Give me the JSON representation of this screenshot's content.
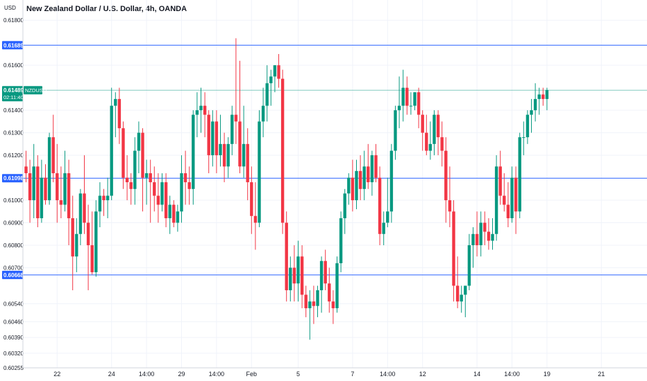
{
  "header": {
    "title": "New Zealand Dollar / U.S. Dollar, 4h, OANDA"
  },
  "chart_data": {
    "type": "candlestick",
    "title": "New Zealand Dollar / U.S. Dollar, 4h, OANDA",
    "y_axis_label": "USD",
    "ylim": [
      0.60255,
      0.6189
    ],
    "y_ticks": [
      0.618,
      0.616,
      0.614,
      0.613,
      0.612,
      0.61,
      0.609,
      0.608,
      0.607,
      0.6054,
      0.6046,
      0.6039,
      0.6032,
      0.60255
    ],
    "x_ticks": [
      {
        "label": "22",
        "index": 8
      },
      {
        "label": "24",
        "index": 22
      },
      {
        "label": "14:00",
        "index": 31
      },
      {
        "label": "29",
        "index": 40
      },
      {
        "label": "14:00",
        "index": 49
      },
      {
        "label": "Feb",
        "index": 58
      },
      {
        "label": "5",
        "index": 70
      },
      {
        "label": "7",
        "index": 84
      },
      {
        "label": "14:00",
        "index": 93
      },
      {
        "label": "12",
        "index": 102
      },
      {
        "label": "14",
        "index": 116
      },
      {
        "label": "14:00",
        "index": 125
      },
      {
        "label": "19",
        "index": 134
      },
      {
        "label": "21",
        "index": 148
      }
    ],
    "horizontal_lines": [
      {
        "value": 0.61689,
        "label": "0.61689",
        "color": "#2962ff"
      },
      {
        "value": 0.61098,
        "label": "0.61098",
        "color": "#2962ff"
      },
      {
        "value": 0.60668,
        "label": "0.60668",
        "color": "#2962ff"
      }
    ],
    "last_price": {
      "value": 0.61489,
      "label": "0.61489",
      "symbol": "NZDUSD",
      "countdown": "02:11:40",
      "color": "#089981"
    },
    "colors": {
      "up": "#089981",
      "down": "#f23645",
      "grid": "#f0f3fa",
      "axis_text": "#131722"
    },
    "candles": [
      [
        0.6115,
        0.6122,
        0.6108,
        0.6112
      ],
      [
        0.6112,
        0.6118,
        0.609,
        0.61
      ],
      [
        0.61,
        0.6125,
        0.6092,
        0.6115
      ],
      [
        0.6115,
        0.612,
        0.6088,
        0.6092
      ],
      [
        0.6092,
        0.6118,
        0.609,
        0.611
      ],
      [
        0.611,
        0.6116,
        0.6098,
        0.61
      ],
      [
        0.61,
        0.613,
        0.6098,
        0.6128
      ],
      [
        0.6128,
        0.6138,
        0.6108,
        0.6112
      ],
      [
        0.6112,
        0.6125,
        0.609,
        0.61
      ],
      [
        0.61,
        0.6115,
        0.6092,
        0.6098
      ],
      [
        0.6098,
        0.6122,
        0.6095,
        0.6112
      ],
      [
        0.6112,
        0.6118,
        0.608,
        0.6092
      ],
      [
        0.6092,
        0.6102,
        0.606,
        0.6075
      ],
      [
        0.6075,
        0.6092,
        0.6068,
        0.6085
      ],
      [
        0.6085,
        0.6105,
        0.608,
        0.6103
      ],
      [
        0.6103,
        0.612,
        0.6085,
        0.609
      ],
      [
        0.609,
        0.6098,
        0.606,
        0.608
      ],
      [
        0.608,
        0.6095,
        0.6067,
        0.6068
      ],
      [
        0.6068,
        0.61,
        0.6066,
        0.6095
      ],
      [
        0.6095,
        0.6108,
        0.6088,
        0.6102
      ],
      [
        0.6102,
        0.6105,
        0.6093,
        0.61
      ],
      [
        0.61,
        0.611,
        0.6092,
        0.6102
      ],
      [
        0.6102,
        0.615,
        0.61,
        0.6142
      ],
      [
        0.6142,
        0.6148,
        0.6128,
        0.6145
      ],
      [
        0.6145,
        0.615,
        0.6125,
        0.6132
      ],
      [
        0.6132,
        0.6135,
        0.6105,
        0.611
      ],
      [
        0.611,
        0.612,
        0.61,
        0.6108
      ],
      [
        0.6108,
        0.6112,
        0.6098,
        0.6105
      ],
      [
        0.6105,
        0.6128,
        0.6098,
        0.6122
      ],
      [
        0.6122,
        0.6135,
        0.6112,
        0.613
      ],
      [
        0.613,
        0.6132,
        0.6095,
        0.611
      ],
      [
        0.611,
        0.6118,
        0.6098,
        0.6112
      ],
      [
        0.6112,
        0.6118,
        0.609,
        0.6108
      ],
      [
        0.6108,
        0.6115,
        0.6095,
        0.6102
      ],
      [
        0.6102,
        0.6112,
        0.609,
        0.6098
      ],
      [
        0.6098,
        0.6112,
        0.6095,
        0.6108
      ],
      [
        0.6108,
        0.6112,
        0.6088,
        0.6092
      ],
      [
        0.6092,
        0.6102,
        0.6085,
        0.6098
      ],
      [
        0.6098,
        0.61,
        0.6088,
        0.609
      ],
      [
        0.609,
        0.6098,
        0.6086,
        0.6095
      ],
      [
        0.6095,
        0.612,
        0.609,
        0.6112
      ],
      [
        0.6112,
        0.6122,
        0.6098,
        0.6108
      ],
      [
        0.6108,
        0.6115,
        0.6098,
        0.6105
      ],
      [
        0.6105,
        0.614,
        0.6098,
        0.6138
      ],
      [
        0.6138,
        0.6148,
        0.6128,
        0.614
      ],
      [
        0.614,
        0.615,
        0.613,
        0.6142
      ],
      [
        0.6142,
        0.6148,
        0.6128,
        0.6138
      ],
      [
        0.6138,
        0.614,
        0.6112,
        0.612
      ],
      [
        0.612,
        0.614,
        0.6115,
        0.6135
      ],
      [
        0.6135,
        0.614,
        0.6112,
        0.612
      ],
      [
        0.612,
        0.6138,
        0.6115,
        0.6125
      ],
      [
        0.6125,
        0.613,
        0.6108,
        0.6115
      ],
      [
        0.6115,
        0.6128,
        0.611,
        0.6125
      ],
      [
        0.6125,
        0.6142,
        0.612,
        0.6138
      ],
      [
        0.6138,
        0.6172,
        0.6125,
        0.6135
      ],
      [
        0.6135,
        0.6162,
        0.6112,
        0.6115
      ],
      [
        0.6115,
        0.6142,
        0.611,
        0.6125
      ],
      [
        0.6125,
        0.6132,
        0.61,
        0.6108
      ],
      [
        0.6108,
        0.6115,
        0.6085,
        0.6093
      ],
      [
        0.6093,
        0.6108,
        0.6078,
        0.609
      ],
      [
        0.609,
        0.614,
        0.6088,
        0.6135
      ],
      [
        0.6135,
        0.615,
        0.6128,
        0.6142
      ],
      [
        0.6142,
        0.616,
        0.6135,
        0.6152
      ],
      [
        0.6152,
        0.6158,
        0.6142,
        0.6155
      ],
      [
        0.6155,
        0.616,
        0.6148,
        0.616
      ],
      [
        0.616,
        0.6165,
        0.615,
        0.6154
      ],
      [
        0.6154,
        0.6158,
        0.6085,
        0.609
      ],
      [
        0.609,
        0.6095,
        0.6055,
        0.606
      ],
      [
        0.606,
        0.6075,
        0.6055,
        0.607
      ],
      [
        0.607,
        0.608,
        0.6055,
        0.6063
      ],
      [
        0.6063,
        0.6082,
        0.6055,
        0.6075
      ],
      [
        0.6075,
        0.608,
        0.6052,
        0.6058
      ],
      [
        0.6058,
        0.6062,
        0.6048,
        0.6052
      ],
      [
        0.6052,
        0.606,
        0.6038,
        0.6055
      ],
      [
        0.6055,
        0.6062,
        0.6045,
        0.6053
      ],
      [
        0.6053,
        0.6062,
        0.6048,
        0.606
      ],
      [
        0.606,
        0.6075,
        0.605,
        0.6073
      ],
      [
        0.6073,
        0.6078,
        0.606,
        0.6063
      ],
      [
        0.6063,
        0.607,
        0.605,
        0.6055
      ],
      [
        0.6055,
        0.606,
        0.6045,
        0.6052
      ],
      [
        0.6052,
        0.6075,
        0.605,
        0.6072
      ],
      [
        0.6072,
        0.6095,
        0.6068,
        0.6092
      ],
      [
        0.6092,
        0.6105,
        0.6085,
        0.6103
      ],
      [
        0.6103,
        0.6112,
        0.6098,
        0.611
      ],
      [
        0.611,
        0.6118,
        0.6095,
        0.61
      ],
      [
        0.61,
        0.6118,
        0.6096,
        0.6113
      ],
      [
        0.6113,
        0.612,
        0.61,
        0.6105
      ],
      [
        0.6105,
        0.6122,
        0.61,
        0.6115
      ],
      [
        0.6115,
        0.6125,
        0.6105,
        0.6108
      ],
      [
        0.6108,
        0.6122,
        0.6102,
        0.612
      ],
      [
        0.612,
        0.6125,
        0.6108,
        0.611
      ],
      [
        0.611,
        0.6115,
        0.608,
        0.6085
      ],
      [
        0.6085,
        0.6095,
        0.608,
        0.609
      ],
      [
        0.609,
        0.611,
        0.6088,
        0.6095
      ],
      [
        0.6095,
        0.6125,
        0.609,
        0.6122
      ],
      [
        0.6122,
        0.6142,
        0.6118,
        0.614
      ],
      [
        0.614,
        0.6155,
        0.6132,
        0.6142
      ],
      [
        0.6142,
        0.6158,
        0.6135,
        0.615
      ],
      [
        0.615,
        0.6155,
        0.6138,
        0.6142
      ],
      [
        0.6142,
        0.6148,
        0.6138,
        0.6142
      ],
      [
        0.6142,
        0.6148,
        0.614,
        0.6148
      ],
      [
        0.6148,
        0.615,
        0.6132,
        0.6138
      ],
      [
        0.6138,
        0.614,
        0.6122,
        0.613
      ],
      [
        0.613,
        0.6138,
        0.612,
        0.6122
      ],
      [
        0.6122,
        0.6135,
        0.6118,
        0.6125
      ],
      [
        0.6125,
        0.614,
        0.612,
        0.6138
      ],
      [
        0.6138,
        0.614,
        0.612,
        0.6128
      ],
      [
        0.6128,
        0.6135,
        0.6115,
        0.6122
      ],
      [
        0.6122,
        0.6128,
        0.609,
        0.61
      ],
      [
        0.61,
        0.6115,
        0.6088,
        0.6095
      ],
      [
        0.6095,
        0.61,
        0.6055,
        0.6062
      ],
      [
        0.6062,
        0.6075,
        0.6052,
        0.6055
      ],
      [
        0.6055,
        0.6062,
        0.605,
        0.6058
      ],
      [
        0.6058,
        0.6062,
        0.6048,
        0.6062
      ],
      [
        0.6062,
        0.6085,
        0.606,
        0.608
      ],
      [
        0.608,
        0.6088,
        0.607,
        0.6085
      ],
      [
        0.6085,
        0.6095,
        0.6075,
        0.608
      ],
      [
        0.608,
        0.6095,
        0.6075,
        0.609
      ],
      [
        0.609,
        0.6095,
        0.608,
        0.6086
      ],
      [
        0.6086,
        0.6092,
        0.6078,
        0.6082
      ],
      [
        0.6082,
        0.6092,
        0.6078,
        0.6085
      ],
      [
        0.6085,
        0.612,
        0.6082,
        0.6115
      ],
      [
        0.6115,
        0.6122,
        0.6098,
        0.6102
      ],
      [
        0.6102,
        0.6112,
        0.6095,
        0.6098
      ],
      [
        0.6098,
        0.6108,
        0.6088,
        0.6092
      ],
      [
        0.6092,
        0.6115,
        0.609,
        0.611
      ],
      [
        0.611,
        0.6115,
        0.6085,
        0.6095
      ],
      [
        0.6095,
        0.613,
        0.6092,
        0.6128
      ],
      [
        0.6128,
        0.6135,
        0.612,
        0.6128
      ],
      [
        0.6128,
        0.614,
        0.6125,
        0.6138
      ],
      [
        0.6138,
        0.6145,
        0.613,
        0.614
      ],
      [
        0.614,
        0.6152,
        0.6135,
        0.6145
      ],
      [
        0.6145,
        0.615,
        0.6138,
        0.6147
      ],
      [
        0.6147,
        0.615,
        0.6142,
        0.6145
      ],
      [
        0.6145,
        0.615,
        0.614,
        0.6149
      ]
    ]
  }
}
